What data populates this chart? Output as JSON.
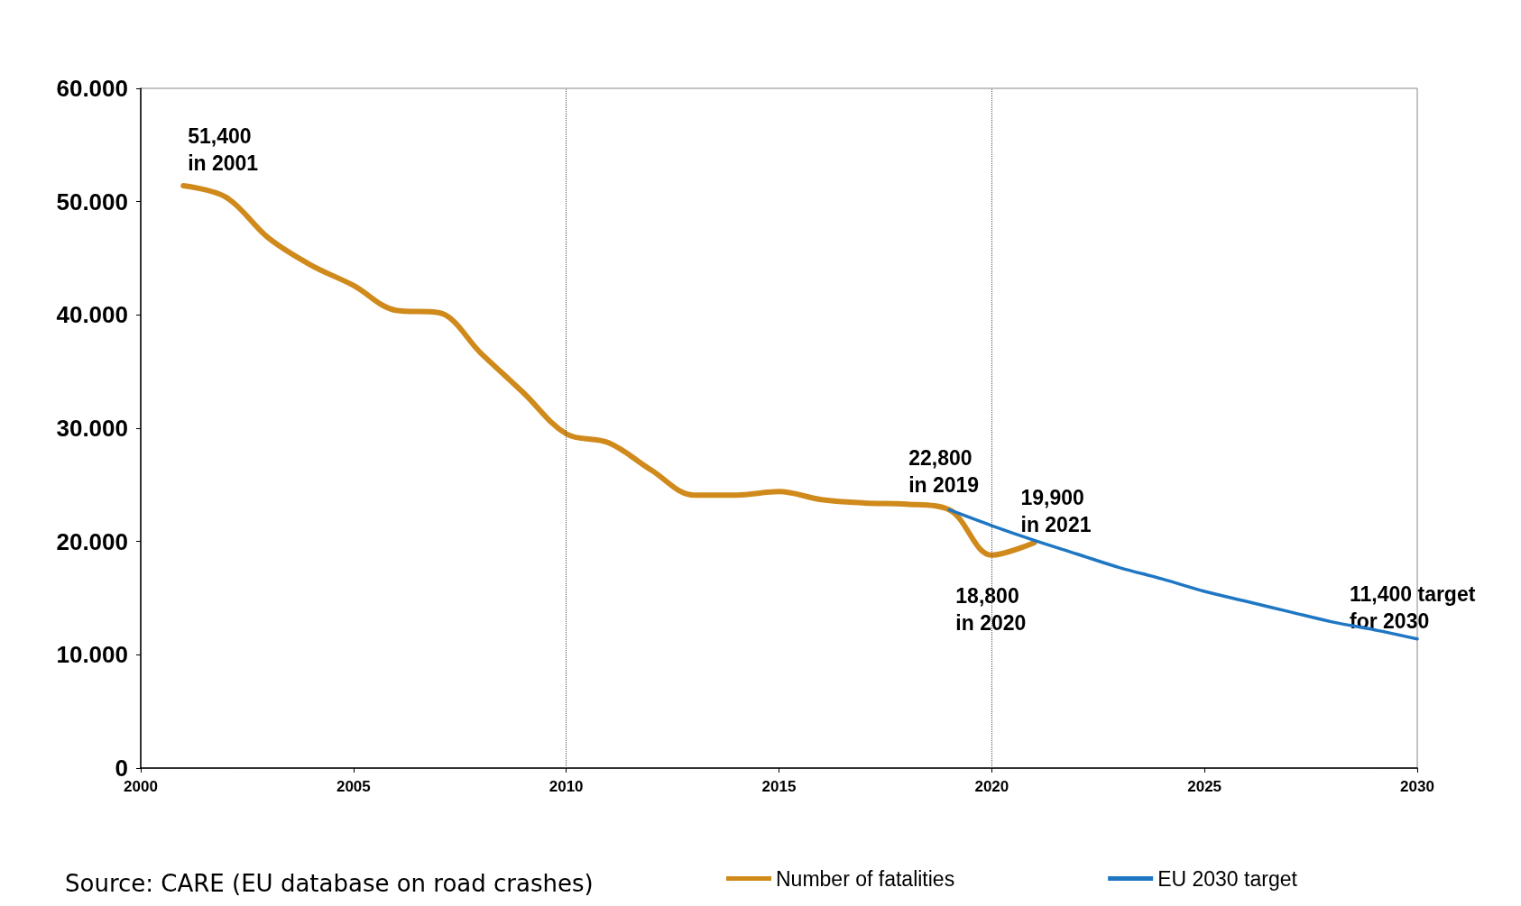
{
  "chart_data": {
    "type": "line",
    "series": [
      {
        "name": "Number of fatalities",
        "color": "#d08a1c",
        "x": [
          2001,
          2002,
          2003,
          2004,
          2005,
          2006,
          2007,
          2008,
          2009,
          2010,
          2011,
          2012,
          2013,
          2014,
          2015,
          2016,
          2017,
          2018,
          2019,
          2020,
          2021
        ],
        "values": [
          51400,
          50400,
          46800,
          44400,
          42600,
          40400,
          40200,
          36600,
          33100,
          29500,
          28700,
          26300,
          24100,
          24100,
          24400,
          23700,
          23400,
          23300,
          22800,
          18800,
          19900
        ]
      },
      {
        "name": "EU 2030 target",
        "color": "#1f77c4",
        "x": [
          2019,
          2020,
          2021,
          2022,
          2023,
          2024,
          2025,
          2026,
          2027,
          2028,
          2029,
          2030
        ],
        "values": [
          22800,
          21400,
          20100,
          18900,
          17700,
          16700,
          15600,
          14700,
          13800,
          12900,
          12200,
          11400
        ]
      }
    ],
    "xlim": [
      2000,
      2030
    ],
    "xticks": [
      2000,
      2005,
      2010,
      2015,
      2020,
      2025,
      2030
    ],
    "ylim": [
      0,
      60000
    ],
    "yticks": [
      0,
      {
        "value": 10000,
        "label": "10.000"
      },
      {
        "value": 20000,
        "label": "20.000"
      },
      {
        "value": 30000,
        "label": "30.000"
      },
      {
        "value": 40000,
        "label": "40.000"
      },
      {
        "value": 50000,
        "label": "50.000"
      },
      {
        "value": 60000,
        "label": "60.000"
      }
    ],
    "grid": false,
    "legend": "bottom right",
    "marker": "none",
    "line_style": "solid",
    "ref_lines": [
      {
        "axis": "x",
        "value": 2010,
        "color": "#555555",
        "line_style": "dotted"
      },
      {
        "axis": "x",
        "value": 2020,
        "color": "#555555",
        "line_style": "dotted"
      }
    ],
    "annotations": [
      {
        "text": "51,400\nin 2001",
        "x": 2001,
        "y": 51400
      },
      {
        "text": "22,800\nin 2019",
        "x": 2019,
        "y": 22800
      },
      {
        "text": "18,800\nin 2020",
        "x": 2020,
        "y": 18800
      },
      {
        "text": "19,900\nin 2021",
        "x": 2021,
        "y": 19900
      },
      {
        "text": "11,400 target\nfor 2030",
        "x": 2030,
        "y": 11400
      },
      "Source: CARE (EU database on road crashes)"
    ]
  }
}
